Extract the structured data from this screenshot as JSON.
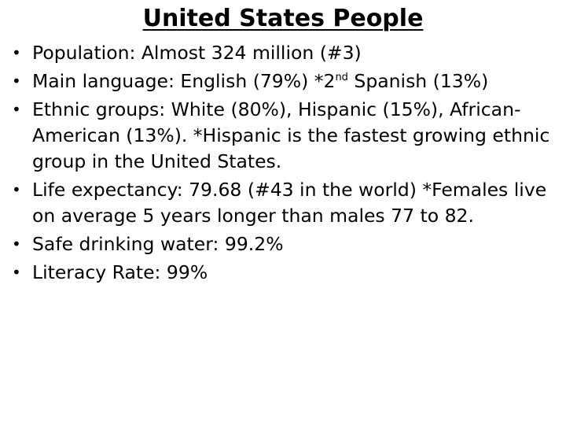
{
  "title": "United States People",
  "bullet_symbol": "•",
  "bullets": [
    {
      "text": "Population: Almost 324 million (#3)"
    },
    {
      "pre": "Main language: English (79%)  *2",
      "sup": "nd",
      "post": " Spanish (13%)"
    },
    {
      "text": "Ethnic groups: White (80%), Hispanic (15%), African-American (13%). *Hispanic is the fastest growing ethnic group in the United States."
    },
    {
      "text": "Life expectancy: 79.68 (#43 in the world) *Females live on average 5 years longer than males 77 to 82."
    },
    {
      "text": "Safe drinking water: 99.2%"
    },
    {
      "text": "Literacy Rate: 99%"
    }
  ]
}
